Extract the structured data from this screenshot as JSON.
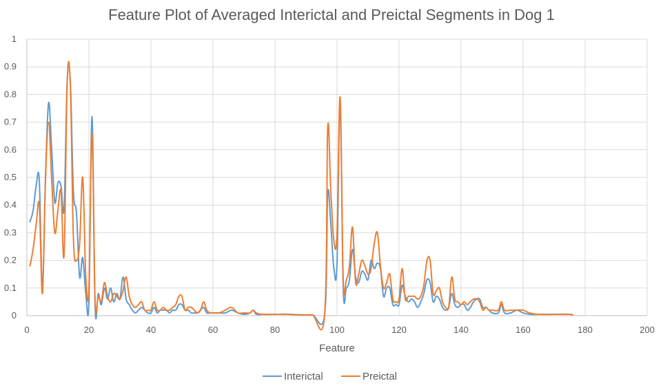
{
  "chart_data": {
    "type": "line",
    "title": "Feature Plot of Averaged Interictal and Preictal Segments in Dog 1",
    "xlabel": "Feature",
    "ylabel": "",
    "xlim": [
      0,
      200
    ],
    "ylim": [
      0,
      1
    ],
    "xticks": [
      0,
      20,
      40,
      60,
      80,
      100,
      120,
      140,
      160,
      180,
      200
    ],
    "yticks": [
      0,
      0.1,
      0.2,
      0.3,
      0.4,
      0.5,
      0.6,
      0.7,
      0.8,
      0.9,
      1
    ],
    "xtick_labels": [
      "0",
      "20",
      "40",
      "60",
      "80",
      "100",
      "120",
      "140",
      "160",
      "180",
      "200"
    ],
    "ytick_labels": [
      "0",
      "0.1",
      "0.2",
      "0.3",
      "0.4",
      "0.5",
      "0.6",
      "0.7",
      "0.8",
      "0.9",
      "1"
    ],
    "grid": "both",
    "legend": "bottom",
    "series": [
      {
        "name": "Interictal",
        "color": "#5B9BD5",
        "points": [
          [
            1,
            0.34
          ],
          [
            2,
            0.38
          ],
          [
            3,
            0.47
          ],
          [
            4,
            0.49
          ],
          [
            5,
            0.1
          ],
          [
            6,
            0.5
          ],
          [
            7,
            0.77
          ],
          [
            8,
            0.6
          ],
          [
            9,
            0.41
          ],
          [
            10,
            0.48
          ],
          [
            11,
            0.47
          ],
          [
            12,
            0.39
          ],
          [
            13,
            0.85
          ],
          [
            14,
            0.85
          ],
          [
            15,
            0.45
          ],
          [
            16,
            0.37
          ],
          [
            17,
            0.14
          ],
          [
            18,
            0.21
          ],
          [
            19,
            0.08
          ],
          [
            20,
            0.05
          ],
          [
            21,
            0.72
          ],
          [
            22,
            0.03
          ],
          [
            23,
            0.08
          ],
          [
            24,
            0.04
          ],
          [
            25,
            0.1
          ],
          [
            26,
            0.06
          ],
          [
            27,
            0.1
          ],
          [
            28,
            0.05
          ],
          [
            29,
            0.08
          ],
          [
            30,
            0.06
          ],
          [
            31,
            0.14
          ],
          [
            32,
            0.06
          ],
          [
            33,
            0.04
          ],
          [
            34,
            0.02
          ],
          [
            35,
            0.01
          ],
          [
            36,
            0.02
          ],
          [
            37,
            0.03
          ],
          [
            38,
            0.02
          ],
          [
            39,
            0.01
          ],
          [
            40,
            0.01
          ],
          [
            41,
            0.03
          ],
          [
            42,
            0.01
          ],
          [
            43,
            0.02
          ],
          [
            44,
            0.02
          ],
          [
            45,
            0.02
          ],
          [
            46,
            0.01
          ],
          [
            47,
            0.02
          ],
          [
            48,
            0.02
          ],
          [
            49,
            0.04
          ],
          [
            50,
            0.04
          ],
          [
            51,
            0.02
          ],
          [
            52,
            0.02
          ],
          [
            53,
            0.01
          ],
          [
            54,
            0.01
          ],
          [
            55,
            0.01
          ],
          [
            56,
            0.02
          ],
          [
            57,
            0.03
          ],
          [
            58,
            0.01
          ],
          [
            59,
            0.01
          ],
          [
            60,
            0.01
          ],
          [
            62,
            0.01
          ],
          [
            64,
            0.01
          ],
          [
            66,
            0.02
          ],
          [
            68,
            0.01
          ],
          [
            70,
            0.005
          ],
          [
            72,
            0.01
          ],
          [
            73,
            0.02
          ],
          [
            74,
            0.005
          ],
          [
            76,
            0.005
          ],
          [
            80,
            0.005
          ],
          [
            84,
            0.005
          ],
          [
            88,
            0.003
          ],
          [
            92,
            0.003
          ],
          [
            96,
            0.003
          ],
          [
            97,
            0.44
          ],
          [
            98,
            0.33
          ],
          [
            99,
            0.17
          ],
          [
            100,
            0.19
          ],
          [
            101,
            0.78
          ],
          [
            102,
            0.1
          ],
          [
            103,
            0.1
          ],
          [
            104,
            0.13
          ],
          [
            105,
            0.24
          ],
          [
            106,
            0.14
          ],
          [
            107,
            0.12
          ],
          [
            108,
            0.16
          ],
          [
            109,
            0.15
          ],
          [
            110,
            0.13
          ],
          [
            111,
            0.2
          ],
          [
            112,
            0.17
          ],
          [
            113,
            0.19
          ],
          [
            114,
            0.17
          ],
          [
            115,
            0.07
          ],
          [
            116,
            0.1
          ],
          [
            117,
            0.1
          ],
          [
            118,
            0.04
          ],
          [
            119,
            0.04
          ],
          [
            120,
            0.04
          ],
          [
            121,
            0.11
          ],
          [
            122,
            0.07
          ],
          [
            123,
            0.05
          ],
          [
            124,
            0.06
          ],
          [
            125,
            0.05
          ],
          [
            126,
            0.03
          ],
          [
            127,
            0.05
          ],
          [
            128,
            0.08
          ],
          [
            129,
            0.13
          ],
          [
            130,
            0.12
          ],
          [
            131,
            0.05
          ],
          [
            132,
            0.07
          ],
          [
            133,
            0.06
          ],
          [
            134,
            0.03
          ],
          [
            135,
            0.02
          ],
          [
            136,
            0.03
          ],
          [
            137,
            0.08
          ],
          [
            138,
            0.04
          ],
          [
            139,
            0.03
          ],
          [
            140,
            0.04
          ],
          [
            141,
            0.04
          ],
          [
            142,
            0.02
          ],
          [
            143,
            0.03
          ],
          [
            144,
            0.05
          ],
          [
            145,
            0.06
          ],
          [
            146,
            0.06
          ],
          [
            147,
            0.03
          ],
          [
            148,
            0.03
          ],
          [
            149,
            0.02
          ],
          [
            150,
            0.01
          ],
          [
            152,
            0.01
          ],
          [
            153,
            0.04
          ],
          [
            154,
            0.01
          ],
          [
            156,
            0.01
          ],
          [
            158,
            0.02
          ],
          [
            160,
            0.01
          ],
          [
            162,
            0.005
          ],
          [
            165,
            0.005
          ],
          [
            170,
            0.005
          ],
          [
            175,
            0.005
          ],
          [
            176,
            0.002
          ]
        ]
      },
      {
        "name": "Preictal",
        "color": "#ED7D31",
        "points": [
          [
            1,
            0.18
          ],
          [
            2,
            0.24
          ],
          [
            3,
            0.33
          ],
          [
            4,
            0.4
          ],
          [
            5,
            0.08
          ],
          [
            6,
            0.49
          ],
          [
            7,
            0.7
          ],
          [
            8,
            0.49
          ],
          [
            9,
            0.3
          ],
          [
            10,
            0.38
          ],
          [
            11,
            0.45
          ],
          [
            12,
            0.22
          ],
          [
            13,
            0.84
          ],
          [
            14,
            0.84
          ],
          [
            15,
            0.28
          ],
          [
            16,
            0.2
          ],
          [
            17,
            0.26
          ],
          [
            18,
            0.5
          ],
          [
            19,
            0.14
          ],
          [
            20,
            0.1
          ],
          [
            21,
            0.66
          ],
          [
            22,
            0.05
          ],
          [
            23,
            0.07
          ],
          [
            24,
            0.05
          ],
          [
            25,
            0.12
          ],
          [
            26,
            0.07
          ],
          [
            27,
            0.05
          ],
          [
            28,
            0.08
          ],
          [
            29,
            0.07
          ],
          [
            30,
            0.06
          ],
          [
            31,
            0.09
          ],
          [
            32,
            0.14
          ],
          [
            33,
            0.07
          ],
          [
            34,
            0.04
          ],
          [
            35,
            0.03
          ],
          [
            36,
            0.04
          ],
          [
            37,
            0.05
          ],
          [
            38,
            0.02
          ],
          [
            39,
            0.02
          ],
          [
            40,
            0.02
          ],
          [
            41,
            0.05
          ],
          [
            42,
            0.02
          ],
          [
            43,
            0.02
          ],
          [
            44,
            0.03
          ],
          [
            45,
            0.02
          ],
          [
            46,
            0.02
          ],
          [
            47,
            0.03
          ],
          [
            48,
            0.04
          ],
          [
            49,
            0.07
          ],
          [
            50,
            0.07
          ],
          [
            51,
            0.02
          ],
          [
            52,
            0.03
          ],
          [
            53,
            0.03
          ],
          [
            54,
            0.02
          ],
          [
            55,
            0.01
          ],
          [
            56,
            0.02
          ],
          [
            57,
            0.05
          ],
          [
            58,
            0.02
          ],
          [
            59,
            0.01
          ],
          [
            60,
            0.01
          ],
          [
            62,
            0.01
          ],
          [
            64,
            0.02
          ],
          [
            66,
            0.03
          ],
          [
            68,
            0.01
          ],
          [
            70,
            0.01
          ],
          [
            72,
            0.01
          ],
          [
            73,
            0.02
          ],
          [
            74,
            0.01
          ],
          [
            76,
            0.005
          ],
          [
            80,
            0.005
          ],
          [
            84,
            0.005
          ],
          [
            88,
            0.003
          ],
          [
            92,
            0.003
          ],
          [
            96,
            0.003
          ],
          [
            97,
            0.68
          ],
          [
            98,
            0.45
          ],
          [
            99,
            0.27
          ],
          [
            100,
            0.3
          ],
          [
            101,
            0.79
          ],
          [
            102,
            0.13
          ],
          [
            103,
            0.13
          ],
          [
            104,
            0.18
          ],
          [
            105,
            0.32
          ],
          [
            106,
            0.12
          ],
          [
            107,
            0.15
          ],
          [
            108,
            0.2
          ],
          [
            109,
            0.18
          ],
          [
            110,
            0.15
          ],
          [
            111,
            0.17
          ],
          [
            112,
            0.26
          ],
          [
            113,
            0.3
          ],
          [
            114,
            0.18
          ],
          [
            115,
            0.1
          ],
          [
            116,
            0.12
          ],
          [
            117,
            0.15
          ],
          [
            118,
            0.06
          ],
          [
            119,
            0.05
          ],
          [
            120,
            0.06
          ],
          [
            121,
            0.17
          ],
          [
            122,
            0.06
          ],
          [
            123,
            0.07
          ],
          [
            124,
            0.07
          ],
          [
            125,
            0.07
          ],
          [
            126,
            0.06
          ],
          [
            127,
            0.07
          ],
          [
            128,
            0.11
          ],
          [
            129,
            0.2
          ],
          [
            130,
            0.2
          ],
          [
            131,
            0.08
          ],
          [
            132,
            0.09
          ],
          [
            133,
            0.1
          ],
          [
            134,
            0.05
          ],
          [
            135,
            0.03
          ],
          [
            136,
            0.03
          ],
          [
            137,
            0.14
          ],
          [
            138,
            0.06
          ],
          [
            139,
            0.05
          ],
          [
            140,
            0.04
          ],
          [
            141,
            0.05
          ],
          [
            142,
            0.04
          ],
          [
            143,
            0.05
          ],
          [
            144,
            0.06
          ],
          [
            145,
            0.06
          ],
          [
            146,
            0.05
          ],
          [
            147,
            0.02
          ],
          [
            148,
            0.03
          ],
          [
            149,
            0.02
          ],
          [
            150,
            0.02
          ],
          [
            152,
            0.02
          ],
          [
            153,
            0.05
          ],
          [
            154,
            0.02
          ],
          [
            156,
            0.02
          ],
          [
            158,
            0.02
          ],
          [
            160,
            0.02
          ],
          [
            162,
            0.01
          ],
          [
            165,
            0.005
          ],
          [
            170,
            0.005
          ],
          [
            175,
            0.005
          ],
          [
            176,
            0.002
          ]
        ]
      }
    ]
  }
}
